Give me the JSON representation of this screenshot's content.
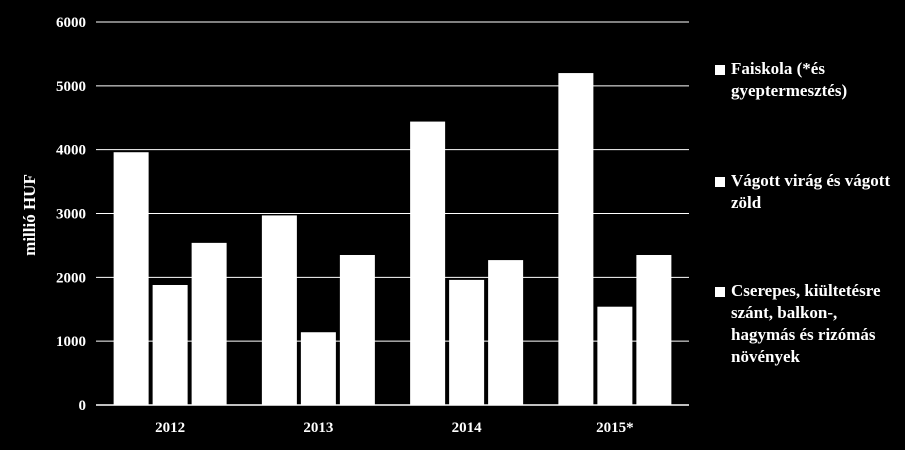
{
  "chart_data": {
    "type": "bar",
    "categories": [
      "2012",
      "2013",
      "2014",
      "2015*"
    ],
    "series": [
      {
        "name": "Faiskola (*és gyeptermesztés)",
        "values": [
          3960,
          2970,
          4440,
          5200
        ]
      },
      {
        "name": "Vágott virág és vágott zöld",
        "values": [
          1880,
          1140,
          1960,
          1540
        ]
      },
      {
        "name": "Cserepes, kiültetésre szánt, balkon-, hagymás és rizómás növények",
        "values": [
          2540,
          2350,
          2270,
          2350
        ]
      }
    ],
    "ylabel": "millió HUF",
    "xlabel": "",
    "ylim": [
      0,
      6000
    ],
    "yticks": [
      0,
      1000,
      2000,
      3000,
      4000,
      5000,
      6000
    ],
    "grid": true,
    "legend": "right",
    "colors": {
      "background": "#000000",
      "bars": "#ffffff",
      "grid": "#ffffff",
      "text": "#ffffff"
    }
  }
}
